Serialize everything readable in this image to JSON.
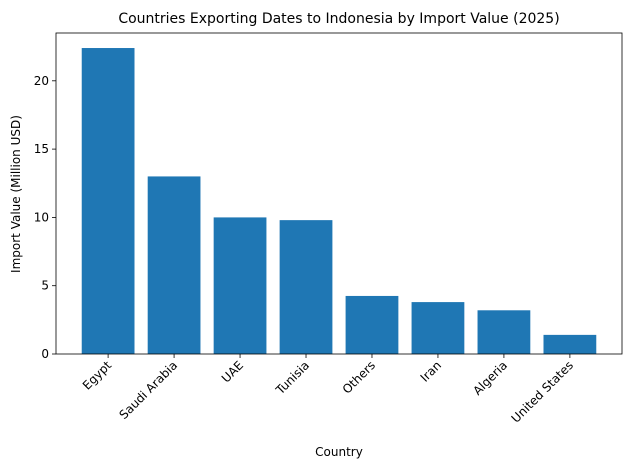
{
  "chart_data": {
    "type": "bar",
    "title": "Countries Exporting Dates to Indonesia by Import Value (2025)",
    "x_label": "Country",
    "y_label": "Import Value (Million USD)",
    "categories": [
      "Egypt",
      "Saudi Arabia",
      "UAE",
      "Tunisia",
      "Others",
      "Iran",
      "Algeria",
      "United States"
    ],
    "values": [
      22.4,
      13.0,
      10.0,
      9.8,
      4.25,
      3.8,
      3.2,
      1.4
    ],
    "color": "#1f77b4",
    "ylim": [
      0,
      23.5
    ],
    "yticks": [
      0,
      5,
      10,
      15,
      20
    ],
    "grid": false
  }
}
